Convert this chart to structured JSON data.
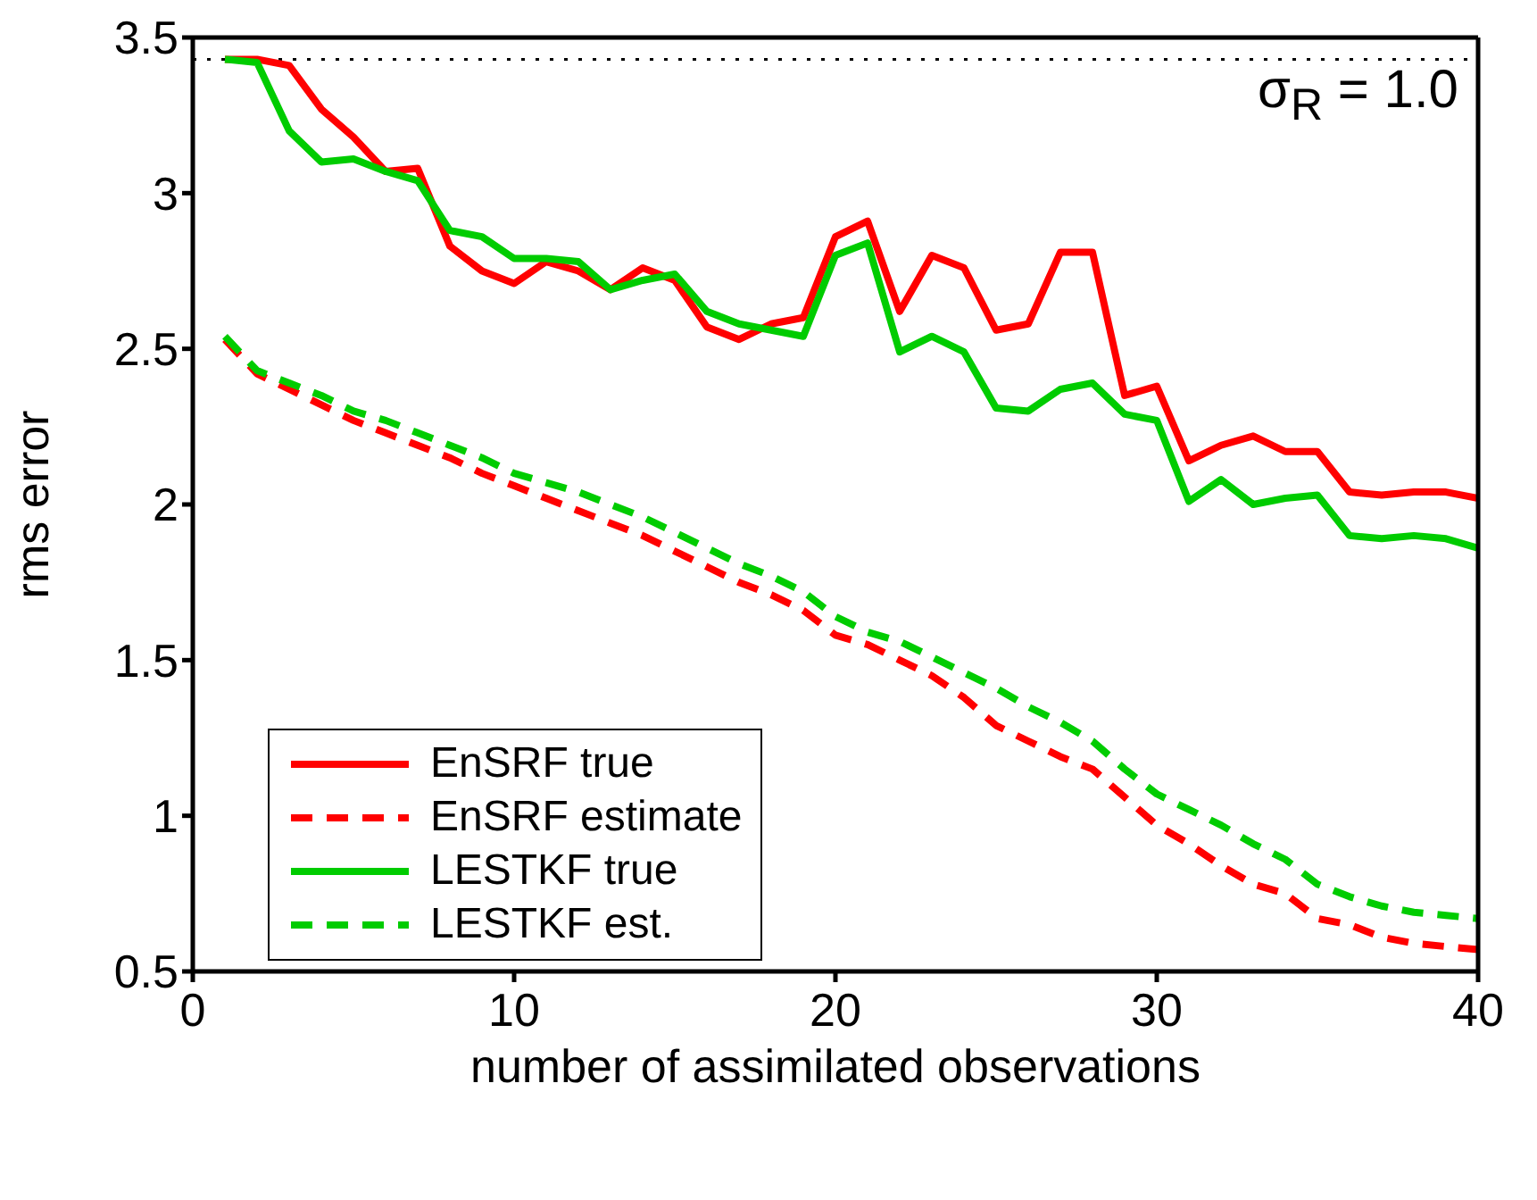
{
  "chart_data": {
    "type": "line",
    "xlabel": "number of assimilated observations",
    "ylabel": "rms error",
    "annotations": [
      "σ$_{R}$ = 1.0"
    ],
    "x": [
      1,
      2,
      3,
      4,
      5,
      6,
      7,
      8,
      9,
      10,
      11,
      12,
      13,
      14,
      15,
      16,
      17,
      18,
      19,
      20,
      21,
      22,
      23,
      24,
      25,
      26,
      27,
      28,
      29,
      30,
      31,
      32,
      33,
      34,
      35,
      36,
      37,
      38,
      39,
      40
    ],
    "series": [
      {
        "name": "EnSRF true",
        "color": "#ff0000",
        "line_style": "solid",
        "values": [
          3.43,
          3.43,
          3.41,
          3.27,
          3.18,
          3.07,
          3.08,
          2.83,
          2.75,
          2.71,
          2.78,
          2.75,
          2.69,
          2.76,
          2.72,
          2.57,
          2.53,
          2.58,
          2.6,
          2.86,
          2.91,
          2.62,
          2.8,
          2.76,
          2.56,
          2.58,
          2.81,
          2.81,
          2.35,
          2.38,
          2.14,
          2.19,
          2.22,
          2.17,
          2.17,
          2.04,
          2.03,
          2.04,
          2.04,
          2.02
        ]
      },
      {
        "name": "EnSRF estimate",
        "color": "#ff0000",
        "line_style": "dashed",
        "values": [
          2.53,
          2.42,
          2.37,
          2.32,
          2.27,
          2.23,
          2.19,
          2.15,
          2.1,
          2.06,
          2.02,
          1.98,
          1.94,
          1.9,
          1.85,
          1.8,
          1.75,
          1.71,
          1.66,
          1.58,
          1.55,
          1.5,
          1.45,
          1.38,
          1.29,
          1.24,
          1.19,
          1.15,
          1.06,
          0.97,
          0.91,
          0.84,
          0.78,
          0.75,
          0.67,
          0.65,
          0.61,
          0.59,
          0.58,
          0.57
        ]
      },
      {
        "name": "LESTKF true",
        "color": "#00cc00",
        "line_style": "solid",
        "values": [
          3.43,
          3.42,
          3.2,
          3.1,
          3.11,
          3.07,
          3.04,
          2.88,
          2.86,
          2.79,
          2.79,
          2.78,
          2.69,
          2.72,
          2.74,
          2.62,
          2.58,
          2.56,
          2.54,
          2.8,
          2.84,
          2.49,
          2.54,
          2.49,
          2.31,
          2.3,
          2.37,
          2.39,
          2.29,
          2.27,
          2.01,
          2.08,
          2.0,
          2.02,
          2.03,
          1.9,
          1.89,
          1.9,
          1.89,
          1.86
        ]
      },
      {
        "name": "LESTKF est.",
        "color": "#00cc00",
        "line_style": "dashed",
        "values": [
          2.54,
          2.43,
          2.39,
          2.35,
          2.3,
          2.27,
          2.23,
          2.19,
          2.15,
          2.1,
          2.07,
          2.04,
          2.0,
          1.96,
          1.91,
          1.86,
          1.81,
          1.77,
          1.72,
          1.64,
          1.59,
          1.56,
          1.51,
          1.46,
          1.41,
          1.35,
          1.3,
          1.24,
          1.15,
          1.07,
          1.02,
          0.97,
          0.91,
          0.86,
          0.78,
          0.74,
          0.71,
          0.69,
          0.68,
          0.67
        ]
      }
    ],
    "xlim": [
      0,
      40
    ],
    "xticks": [
      0,
      10,
      20,
      30,
      40
    ],
    "ylim": [
      0.5,
      3.5
    ],
    "yticks": [
      0.5,
      1,
      1.5,
      2,
      2.5,
      3,
      3.5
    ],
    "ref_lines": [
      {
        "axis": "y",
        "value": 3.43,
        "color": "#000000",
        "line_style": "dotted"
      }
    ],
    "grid": false,
    "legend": "bottom left",
    "marker": "none"
  }
}
